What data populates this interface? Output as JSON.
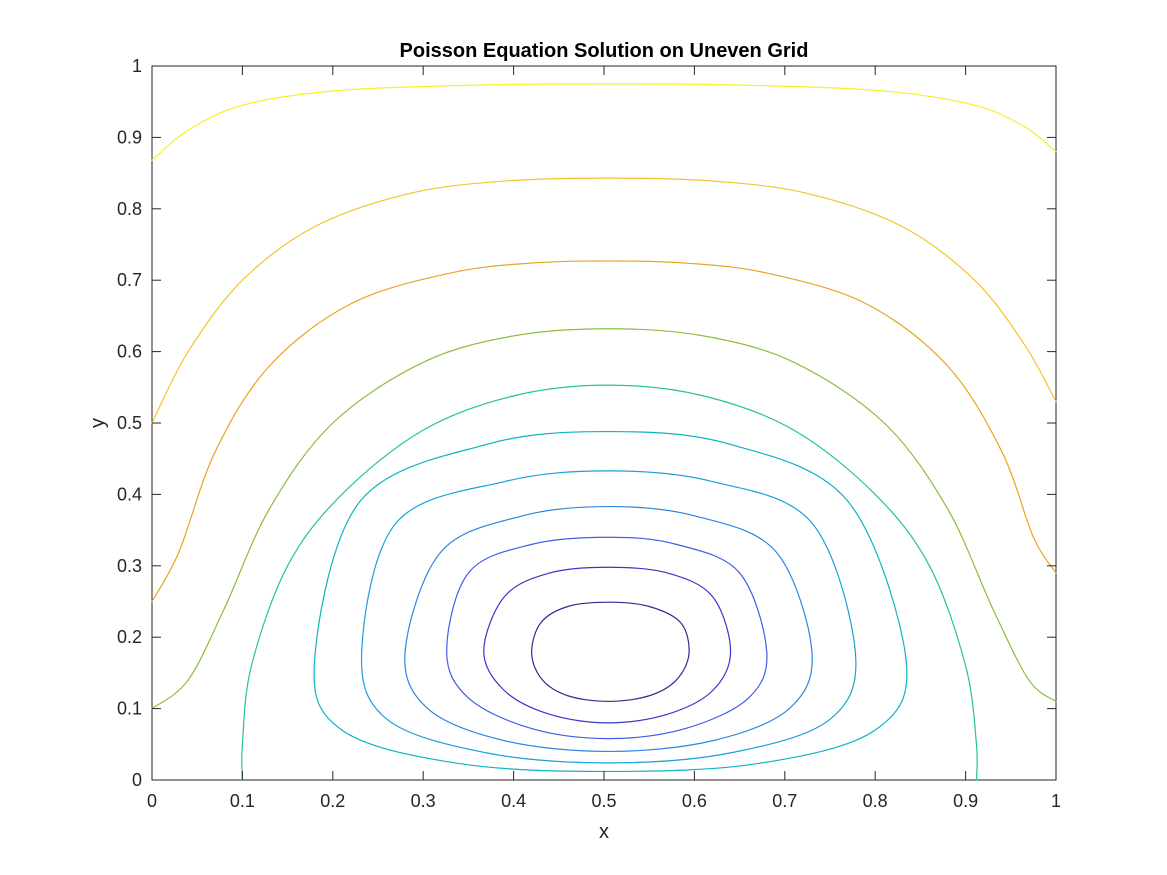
{
  "chart_data": {
    "type": "contour",
    "title": "Poisson Equation Solution on Uneven Grid",
    "xlabel": "x",
    "ylabel": "y",
    "xlim": [
      0,
      1
    ],
    "ylim": [
      0,
      1
    ],
    "xticks": [
      0,
      0.1,
      0.2,
      0.3,
      0.4,
      0.5,
      0.6,
      0.7,
      0.8,
      0.9,
      1
    ],
    "yticks": [
      0,
      0.1,
      0.2,
      0.3,
      0.4,
      0.5,
      0.6,
      0.7,
      0.8,
      0.9,
      1
    ],
    "xtick_labels": [
      "0",
      "0.1",
      "0.2",
      "0.3",
      "0.4",
      "0.5",
      "0.6",
      "0.7",
      "0.8",
      "0.9",
      "1"
    ],
    "ytick_labels": [
      "0",
      "0.1",
      "0.2",
      "0.3",
      "0.4",
      "0.5",
      "0.6",
      "0.7",
      "0.8",
      "0.9",
      "1"
    ],
    "grid": false,
    "box": true,
    "contours": [
      {
        "color": "#2f2a8e",
        "closed": true,
        "points": [
          [
            0.505,
            0.249
          ],
          [
            0.55,
            0.243
          ],
          [
            0.585,
            0.22
          ],
          [
            0.594,
            0.177
          ],
          [
            0.58,
            0.14
          ],
          [
            0.55,
            0.118
          ],
          [
            0.505,
            0.11
          ],
          [
            0.46,
            0.118
          ],
          [
            0.432,
            0.14
          ],
          [
            0.42,
            0.177
          ],
          [
            0.43,
            0.22
          ],
          [
            0.46,
            0.243
          ]
        ]
      },
      {
        "color": "#3737c8",
        "closed": true,
        "points": [
          [
            0.505,
            0.298
          ],
          [
            0.57,
            0.29
          ],
          [
            0.62,
            0.257
          ],
          [
            0.64,
            0.18
          ],
          [
            0.62,
            0.125
          ],
          [
            0.57,
            0.092
          ],
          [
            0.505,
            0.08
          ],
          [
            0.44,
            0.092
          ],
          [
            0.39,
            0.125
          ],
          [
            0.367,
            0.18
          ],
          [
            0.39,
            0.257
          ],
          [
            0.44,
            0.29
          ]
        ]
      },
      {
        "color": "#3f5fe6",
        "closed": true,
        "points": [
          [
            0.505,
            0.34
          ],
          [
            0.58,
            0.33
          ],
          [
            0.65,
            0.29
          ],
          [
            0.68,
            0.18
          ],
          [
            0.66,
            0.115
          ],
          [
            0.59,
            0.072
          ],
          [
            0.505,
            0.058
          ],
          [
            0.42,
            0.072
          ],
          [
            0.35,
            0.115
          ],
          [
            0.326,
            0.18
          ],
          [
            0.35,
            0.29
          ],
          [
            0.42,
            0.33
          ]
        ]
      },
      {
        "color": "#2e86e0",
        "closed": true,
        "points": [
          [
            0.505,
            0.383
          ],
          [
            0.6,
            0.37
          ],
          [
            0.69,
            0.32
          ],
          [
            0.73,
            0.18
          ],
          [
            0.705,
            0.1
          ],
          [
            0.62,
            0.055
          ],
          [
            0.505,
            0.04
          ],
          [
            0.39,
            0.055
          ],
          [
            0.305,
            0.1
          ],
          [
            0.28,
            0.18
          ],
          [
            0.32,
            0.32
          ],
          [
            0.41,
            0.37
          ]
        ]
      },
      {
        "color": "#1aa1d8",
        "closed": true,
        "points": [
          [
            0.505,
            0.433
          ],
          [
            0.62,
            0.418
          ],
          [
            0.73,
            0.36
          ],
          [
            0.778,
            0.18
          ],
          [
            0.75,
            0.085
          ],
          [
            0.64,
            0.038
          ],
          [
            0.505,
            0.024
          ],
          [
            0.37,
            0.038
          ],
          [
            0.26,
            0.085
          ],
          [
            0.232,
            0.18
          ],
          [
            0.27,
            0.36
          ],
          [
            0.39,
            0.418
          ]
        ]
      },
      {
        "color": "#0fb4c1",
        "closed": true,
        "points": [
          [
            0.505,
            0.488
          ],
          [
            0.64,
            0.47
          ],
          [
            0.77,
            0.39
          ],
          [
            0.834,
            0.17
          ],
          [
            0.8,
            0.07
          ],
          [
            0.67,
            0.023
          ],
          [
            0.505,
            0.012
          ],
          [
            0.34,
            0.023
          ],
          [
            0.21,
            0.07
          ],
          [
            0.18,
            0.17
          ],
          [
            0.23,
            0.39
          ],
          [
            0.37,
            0.47
          ]
        ]
      },
      {
        "color": "#26c29a",
        "closed": false,
        "points": [
          [
            0.1,
            0.0
          ],
          [
            0.1,
            0.05
          ],
          [
            0.11,
            0.16
          ],
          [
            0.15,
            0.3
          ],
          [
            0.21,
            0.4
          ],
          [
            0.3,
            0.49
          ],
          [
            0.4,
            0.538
          ],
          [
            0.505,
            0.553
          ],
          [
            0.61,
            0.538
          ],
          [
            0.71,
            0.49
          ],
          [
            0.8,
            0.4
          ],
          [
            0.86,
            0.3
          ],
          [
            0.9,
            0.16
          ],
          [
            0.912,
            0.05
          ],
          [
            0.912,
            0.0
          ]
        ]
      },
      {
        "color": "#8cbe3a",
        "closed": false,
        "points": [
          [
            0.0,
            0.1
          ],
          [
            0.04,
            0.14
          ],
          [
            0.08,
            0.24
          ],
          [
            0.13,
            0.38
          ],
          [
            0.2,
            0.5
          ],
          [
            0.3,
            0.585
          ],
          [
            0.4,
            0.622
          ],
          [
            0.505,
            0.632
          ],
          [
            0.61,
            0.622
          ],
          [
            0.71,
            0.585
          ],
          [
            0.81,
            0.5
          ],
          [
            0.88,
            0.38
          ],
          [
            0.93,
            0.24
          ],
          [
            0.97,
            0.14
          ],
          [
            1.0,
            0.11
          ]
        ]
      },
      {
        "color": "#eaa420",
        "closed": false,
        "points": [
          [
            0.0,
            0.25
          ],
          [
            0.03,
            0.32
          ],
          [
            0.07,
            0.46
          ],
          [
            0.13,
            0.58
          ],
          [
            0.22,
            0.667
          ],
          [
            0.33,
            0.71
          ],
          [
            0.42,
            0.724
          ],
          [
            0.505,
            0.727
          ],
          [
            0.59,
            0.724
          ],
          [
            0.68,
            0.71
          ],
          [
            0.79,
            0.667
          ],
          [
            0.88,
            0.58
          ],
          [
            0.94,
            0.46
          ],
          [
            0.975,
            0.34
          ],
          [
            1.0,
            0.29
          ]
        ]
      },
      {
        "color": "#f0c62c",
        "closed": false,
        "points": [
          [
            0.0,
            0.5
          ],
          [
            0.04,
            0.6
          ],
          [
            0.1,
            0.7
          ],
          [
            0.18,
            0.775
          ],
          [
            0.28,
            0.82
          ],
          [
            0.38,
            0.838
          ],
          [
            0.505,
            0.843
          ],
          [
            0.63,
            0.838
          ],
          [
            0.73,
            0.82
          ],
          [
            0.83,
            0.775
          ],
          [
            0.91,
            0.7
          ],
          [
            0.965,
            0.61
          ],
          [
            1.0,
            0.53
          ]
        ]
      },
      {
        "color": "#f5f02a",
        "closed": false,
        "points": [
          [
            0.0,
            0.868
          ],
          [
            0.04,
            0.91
          ],
          [
            0.1,
            0.945
          ],
          [
            0.2,
            0.965
          ],
          [
            0.35,
            0.973
          ],
          [
            0.505,
            0.975
          ],
          [
            0.66,
            0.973
          ],
          [
            0.81,
            0.965
          ],
          [
            0.91,
            0.945
          ],
          [
            0.965,
            0.915
          ],
          [
            1.0,
            0.88
          ]
        ]
      }
    ]
  }
}
